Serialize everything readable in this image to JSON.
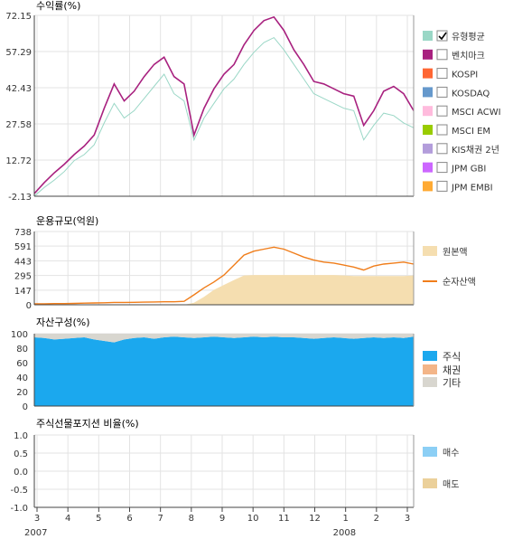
{
  "chart_data": [
    {
      "type": "line",
      "title": "수익률(%)",
      "ylim": [
        -2.13,
        72.15
      ],
      "ytick_labels": [
        "72.15",
        "57.29",
        "42.43",
        "27.58",
        "12.72",
        "-2.13"
      ],
      "yticks": [
        72.15,
        57.29,
        42.43,
        27.58,
        12.72,
        -2.13
      ],
      "grid": true,
      "legend_position": "right",
      "series": [
        {
          "name": "유형평균",
          "color": "#9ad7c6",
          "checked": true,
          "values": [
            -2.1,
            1.5,
            4.5,
            8.0,
            12.5,
            15.0,
            19.0,
            28.0,
            36.0,
            30.0,
            33.0,
            38.0,
            43.0,
            48.0,
            40.0,
            37.0,
            21.0,
            30.0,
            36.0,
            42.0,
            46.0,
            52.0,
            57.0,
            61.0,
            63.0,
            58.0,
            52.0,
            46.0,
            40.0,
            38.0,
            36.0,
            34.0,
            33.0,
            21.0,
            27.0,
            32.0,
            31.0,
            28.0,
            26.0
          ]
        },
        {
          "name": "벤치마크",
          "color": "#a8217f",
          "checked": false,
          "values": [
            -1.0,
            3.5,
            7.5,
            11.0,
            15.0,
            18.5,
            23.0,
            34.0,
            44.0,
            37.0,
            41.0,
            47.0,
            52.0,
            55.0,
            47.0,
            44.0,
            23.0,
            34.0,
            42.0,
            48.0,
            52.0,
            60.0,
            66.0,
            70.0,
            71.5,
            66.0,
            58.0,
            52.0,
            45.0,
            44.0,
            42.0,
            40.0,
            39.0,
            27.0,
            33.0,
            41.0,
            43.0,
            40.0,
            33.0
          ]
        },
        {
          "name": "KOSPI",
          "color": "#ff6633",
          "checked": false,
          "values": []
        },
        {
          "name": "KOSDAQ",
          "color": "#6699cc",
          "checked": false,
          "values": []
        },
        {
          "name": "MSCI ACWI",
          "color": "#ffbbdd",
          "checked": false,
          "values": []
        },
        {
          "name": "MSCI EM",
          "color": "#99cc00",
          "checked": false,
          "values": []
        },
        {
          "name": "KIS채권 2년",
          "color": "#b39ddb",
          "checked": false,
          "values": []
        },
        {
          "name": "JPM GBI",
          "color": "#cc66ff",
          "checked": false,
          "values": []
        },
        {
          "name": "JPM EMBI",
          "color": "#ffaa33",
          "checked": false,
          "values": []
        }
      ]
    },
    {
      "type": "area",
      "title": "운용규모(억원)",
      "ylim": [
        0,
        738
      ],
      "ytick_labels": [
        "738",
        "591",
        "443",
        "295",
        "147",
        "0"
      ],
      "yticks": [
        738,
        591,
        443,
        295,
        147,
        0
      ],
      "grid": true,
      "legend_position": "right",
      "series": [
        {
          "name": "원본액",
          "color": "#f5deb0",
          "type": "area",
          "values": [
            0,
            0,
            0,
            0,
            0,
            0,
            0,
            0,
            0,
            0,
            0,
            0,
            0,
            0,
            0,
            0,
            20,
            80,
            150,
            200,
            250,
            295,
            300,
            300,
            300,
            300,
            300,
            300,
            300,
            300,
            300,
            295,
            290,
            290,
            290,
            290,
            290,
            290,
            295
          ]
        },
        {
          "name": "순자산액",
          "color": "#f07d1a",
          "type": "line",
          "values": [
            10,
            10,
            12,
            12,
            14,
            16,
            18,
            20,
            24,
            24,
            25,
            26,
            28,
            30,
            30,
            35,
            100,
            170,
            230,
            300,
            400,
            500,
            540,
            560,
            580,
            560,
            520,
            480,
            450,
            430,
            420,
            400,
            380,
            350,
            390,
            410,
            420,
            430,
            410
          ]
        }
      ]
    },
    {
      "type": "area",
      "title": "자산구성(%)",
      "ylim": [
        0,
        100
      ],
      "ytick_labels": [
        "100",
        "80",
        "60",
        "40",
        "20",
        "0"
      ],
      "yticks": [
        100,
        80,
        60,
        40,
        20,
        0
      ],
      "grid": true,
      "legend_position": "right",
      "series": [
        {
          "name": "주식",
          "color": "#1ba8ee",
          "values": [
            95,
            94,
            92,
            93,
            94,
            95,
            92,
            90,
            88,
            92,
            94,
            95,
            93,
            95,
            96,
            95,
            94,
            95,
            96,
            95,
            94,
            95,
            96,
            95,
            96,
            95,
            95,
            94,
            93,
            94,
            95,
            94,
            93,
            94,
            95,
            94,
            95,
            94,
            96
          ]
        },
        {
          "name": "채권",
          "color": "#f3b588",
          "values": []
        },
        {
          "name": "기타",
          "color": "#d8d6cf",
          "values": [
            5,
            6,
            8,
            7,
            6,
            5,
            8,
            10,
            12,
            8,
            6,
            5,
            7,
            5,
            4,
            5,
            6,
            5,
            4,
            5,
            6,
            5,
            4,
            5,
            4,
            5,
            5,
            6,
            7,
            6,
            5,
            6,
            7,
            6,
            5,
            6,
            5,
            6,
            4
          ]
        }
      ]
    },
    {
      "type": "bar",
      "title": "주식선물포지션 비율(%)",
      "ylim": [
        -1.0,
        1.0
      ],
      "ytick_labels": [
        "1.0",
        "0.5",
        "0.0",
        "-0.5",
        "-1.0"
      ],
      "yticks": [
        1.0,
        0.5,
        0.0,
        -0.5,
        -1.0
      ],
      "grid": true,
      "legend_position": "right",
      "series": [
        {
          "name": "매수",
          "color": "#8ccff5",
          "values": []
        },
        {
          "name": "매도",
          "color": "#ebd09a",
          "values": []
        }
      ]
    }
  ],
  "x_axis": {
    "month_labels": [
      "3",
      "4",
      "5",
      "6",
      "7",
      "8",
      "9",
      "10",
      "11",
      "12",
      "1",
      "2",
      "3"
    ],
    "year_labels": [
      {
        "text": "2007",
        "month_index": 0
      },
      {
        "text": "2008",
        "month_index": 10
      }
    ]
  }
}
